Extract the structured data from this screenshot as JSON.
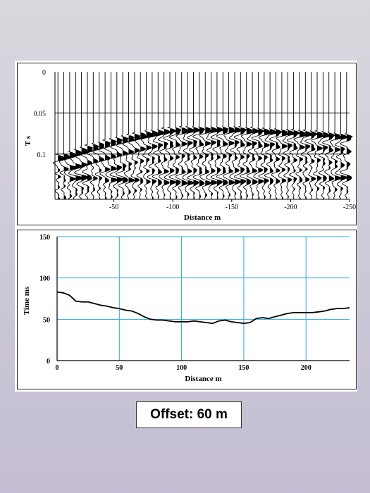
{
  "chart_data": [
    {
      "type": "wiggle",
      "xlabel": "Distance m",
      "ylabel": "T s",
      "xlim": [
        0,
        -250
      ],
      "ylim": [
        0,
        0.155
      ],
      "x_ticks": [
        "-50",
        "-100",
        "-150",
        "-200",
        "-250"
      ],
      "x_tick_values": [
        -50,
        -100,
        -150,
        -200,
        -250
      ],
      "y_ticks": [
        "0",
        "0.05",
        "0.1"
      ],
      "y_tick_values": [
        0,
        0.05,
        0.1
      ],
      "trace_spacing": 5,
      "first_arrival": {
        "x": [
          -5,
          -25,
          -50,
          -75,
          -100,
          -125,
          -150,
          -175,
          -200,
          -225,
          -245
        ],
        "t": [
          0.104,
          0.094,
          0.084,
          0.076,
          0.071,
          0.07,
          0.07,
          0.072,
          0.074,
          0.076,
          0.079
        ]
      },
      "reflection": {
        "x": [
          -5,
          -40,
          -80,
          -120,
          -160,
          -200,
          -245
        ],
        "t": [
          0.125,
          0.127,
          0.13,
          0.132,
          0.13,
          0.128,
          0.126
        ]
      }
    },
    {
      "type": "line",
      "xlabel": "Distance m",
      "ylabel": "Time ms",
      "xlim": [
        0,
        235
      ],
      "ylim": [
        0,
        150
      ],
      "x_ticks": [
        "0",
        "50",
        "100",
        "150",
        "200"
      ],
      "x_tick_values": [
        0,
        50,
        100,
        150,
        200
      ],
      "y_ticks": [
        "0",
        "50",
        "100",
        "150"
      ],
      "y_tick_values": [
        0,
        50,
        100,
        150
      ],
      "grid": true,
      "series": [
        {
          "x": [
            0,
            5,
            10,
            15,
            20,
            25,
            30,
            35,
            40,
            45,
            50,
            55,
            60,
            65,
            70,
            75,
            80,
            85,
            90,
            95,
            100,
            105,
            110,
            115,
            120,
            125,
            130,
            135,
            140,
            145,
            150,
            155,
            160,
            165,
            170,
            175,
            180,
            185,
            190,
            195,
            200,
            205,
            210,
            215,
            220,
            225,
            230,
            235
          ],
          "y": [
            83,
            82,
            79,
            72,
            71,
            71,
            69,
            67,
            66,
            64,
            63,
            61,
            60,
            57,
            53,
            50,
            49,
            49,
            48,
            47,
            47,
            47,
            48,
            47,
            46,
            45,
            48,
            49,
            47,
            46,
            45,
            46,
            51,
            52,
            51,
            53,
            55,
            57,
            58,
            58,
            58,
            58,
            59,
            60,
            62,
            63,
            63,
            64
          ]
        }
      ]
    }
  ],
  "offset_label": "Offset: 60 m"
}
